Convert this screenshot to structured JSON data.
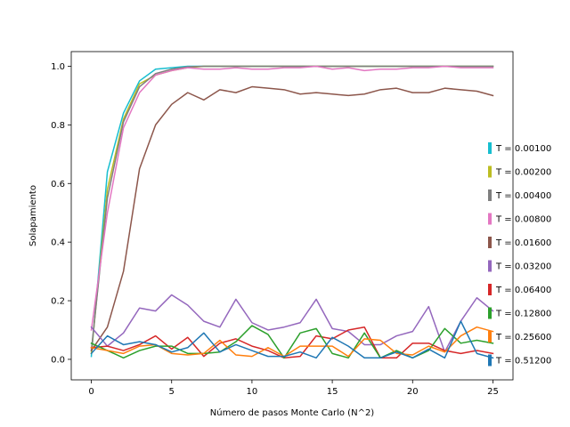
{
  "chart_data": {
    "type": "line",
    "title": "",
    "xlabel": "Número de pasos Monte Carlo (N^2)",
    "ylabel": "Solapamiento",
    "xlim": [
      -1.25,
      26.25
    ],
    "ylim": [
      -0.07,
      1.05
    ],
    "xticks": [
      0,
      5,
      10,
      15,
      20,
      25
    ],
    "xtick_labels": [
      "0",
      "5",
      "10",
      "15",
      "20",
      "25"
    ],
    "yticks": [
      0.0,
      0.2,
      0.4,
      0.6,
      0.8,
      1.0
    ],
    "ytick_labels": [
      "0.0",
      "0.2",
      "0.4",
      "0.6",
      "0.8",
      "1.0"
    ],
    "grid": false,
    "legend_position": "right",
    "x": [
      0,
      1,
      2,
      3,
      4,
      5,
      6,
      7,
      8,
      9,
      10,
      11,
      12,
      13,
      14,
      15,
      16,
      17,
      18,
      19,
      20,
      21,
      22,
      23,
      24,
      25
    ],
    "series": [
      {
        "name": "T = 0.00100",
        "color": "#17becf",
        "values": [
          0.01,
          0.64,
          0.84,
          0.95,
          0.99,
          0.995,
          1.0,
          1.0,
          1.0,
          1.0,
          1.0,
          1.0,
          1.0,
          1.0,
          1.0,
          1.0,
          1.0,
          1.0,
          1.0,
          1.0,
          1.0,
          1.0,
          1.0,
          1.0,
          1.0,
          1.0
        ]
      },
      {
        "name": "T = 0.00200",
        "color": "#bcbd22",
        "values": [
          0.02,
          0.58,
          0.82,
          0.94,
          0.97,
          0.985,
          0.995,
          1.0,
          1.0,
          1.0,
          1.0,
          1.0,
          1.0,
          1.0,
          1.0,
          1.0,
          1.0,
          1.0,
          1.0,
          1.0,
          1.0,
          1.0,
          1.0,
          1.0,
          1.0,
          1.0
        ]
      },
      {
        "name": "T = 0.00400",
        "color": "#7f7f7f",
        "values": [
          0.03,
          0.55,
          0.81,
          0.93,
          0.975,
          0.99,
          0.998,
          1.0,
          1.0,
          1.0,
          1.0,
          1.0,
          1.0,
          1.0,
          1.0,
          1.0,
          1.0,
          1.0,
          1.0,
          1.0,
          1.0,
          1.0,
          1.0,
          1.0,
          1.0,
          1.0
        ]
      },
      {
        "name": "T = 0.00800",
        "color": "#e377c2",
        "values": [
          0.1,
          0.5,
          0.79,
          0.91,
          0.97,
          0.985,
          0.995,
          0.99,
          0.99,
          0.995,
          0.99,
          0.99,
          0.995,
          0.995,
          1.0,
          0.99,
          0.995,
          0.985,
          0.99,
          0.99,
          0.995,
          0.995,
          1.0,
          0.995,
          0.995,
          0.995
        ]
      },
      {
        "name": "T = 0.01600",
        "color": "#8c564b",
        "values": [
          0.03,
          0.11,
          0.3,
          0.65,
          0.8,
          0.87,
          0.91,
          0.885,
          0.92,
          0.91,
          0.93,
          0.925,
          0.92,
          0.905,
          0.91,
          0.905,
          0.9,
          0.905,
          0.92,
          0.925,
          0.91,
          0.91,
          0.925,
          0.92,
          0.915,
          0.9
        ]
      },
      {
        "name": "T = 0.03200",
        "color": "#9467bd",
        "values": [
          0.11,
          0.045,
          0.09,
          0.175,
          0.165,
          0.22,
          0.185,
          0.13,
          0.11,
          0.205,
          0.125,
          0.1,
          0.11,
          0.125,
          0.205,
          0.105,
          0.095,
          0.05,
          0.05,
          0.08,
          0.095,
          0.18,
          0.025,
          0.13,
          0.21,
          0.165
        ]
      },
      {
        "name": "T = 0.06400",
        "color": "#d62728",
        "values": [
          0.04,
          0.045,
          0.03,
          0.05,
          0.08,
          0.035,
          0.075,
          0.01,
          0.055,
          0.07,
          0.045,
          0.03,
          0.005,
          0.01,
          0.08,
          0.07,
          0.1,
          0.11,
          0.005,
          0.005,
          0.055,
          0.055,
          0.03,
          0.02,
          0.03,
          0.02
        ]
      },
      {
        "name": "T = 0.12800",
        "color": "#2ca02c",
        "values": [
          0.055,
          0.03,
          0.005,
          0.03,
          0.045,
          0.045,
          0.02,
          0.02,
          0.025,
          0.06,
          0.115,
          0.085,
          0.005,
          0.09,
          0.105,
          0.02,
          0.005,
          0.09,
          0.005,
          0.03,
          0.005,
          0.03,
          0.105,
          0.055,
          0.065,
          0.055
        ]
      },
      {
        "name": "T = 0.25600",
        "color": "#ff7f0e",
        "values": [
          0.04,
          0.03,
          0.02,
          0.045,
          0.05,
          0.02,
          0.015,
          0.02,
          0.065,
          0.015,
          0.01,
          0.04,
          0.01,
          0.045,
          0.045,
          0.045,
          0.01,
          0.07,
          0.065,
          0.02,
          0.015,
          0.045,
          0.025,
          0.08,
          0.11,
          0.095
        ]
      },
      {
        "name": "T = 0.51200",
        "color": "#1f77b4",
        "values": [
          0.02,
          0.08,
          0.05,
          0.06,
          0.05,
          0.025,
          0.04,
          0.09,
          0.025,
          0.05,
          0.03,
          0.01,
          0.01,
          0.025,
          0.005,
          0.075,
          0.045,
          0.005,
          0.005,
          0.025,
          0.005,
          0.035,
          0.005,
          0.13,
          0.02,
          0.005
        ]
      }
    ]
  }
}
